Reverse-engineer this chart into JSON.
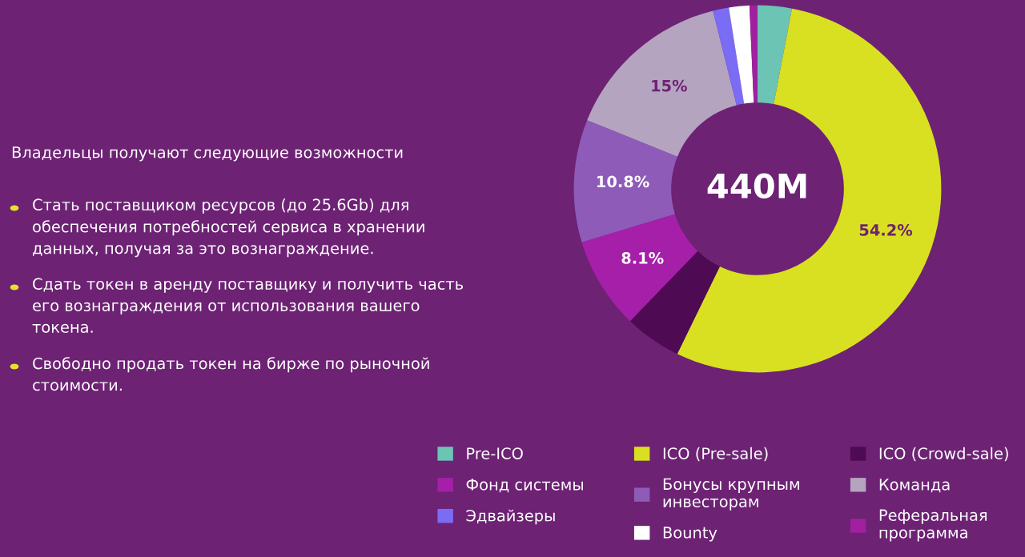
{
  "chart_data": {
    "type": "donut",
    "title": "440M",
    "categories": [
      "Pre-ICO",
      "ICO (Pre-sale)",
      "ICO (Crowd-sale)",
      "Фонд системы",
      "Бонусы крупным\nинвесторам",
      "Команда",
      "Эдвайзеры",
      "Bounty",
      "Реферальная\nпрограмма"
    ],
    "values": [
      3.0,
      54.2,
      5.0,
      8.1,
      10.8,
      15,
      1.4,
      1.8,
      0.7
    ],
    "colors": [
      "#6cc4b4",
      "#d9e021",
      "#4e0a52",
      "#a61fa8",
      "#8e5bb8",
      "#b5a4c0",
      "#7b6cf5",
      "#ffffff",
      "#a020a0"
    ],
    "value_labels": [
      null,
      "54.2%",
      null,
      "8.1%",
      "10.8%",
      "15%",
      null,
      null,
      null
    ],
    "legend": "bottom",
    "annotations": [
      "Владельцы получают следующие возможности",
      "Стать поставщиком ресурсов (до 25.6Gb) для\nобеспечения потребностей сервиса в хранении\nданных, получая за это вознаграждение.",
      "Сдать токен в аренду поставщику и получить часть\nего вознаграждения от использования вашего\nтокена.",
      "Свободно продать токен на бирже по рыночной\nстоимости."
    ]
  }
}
